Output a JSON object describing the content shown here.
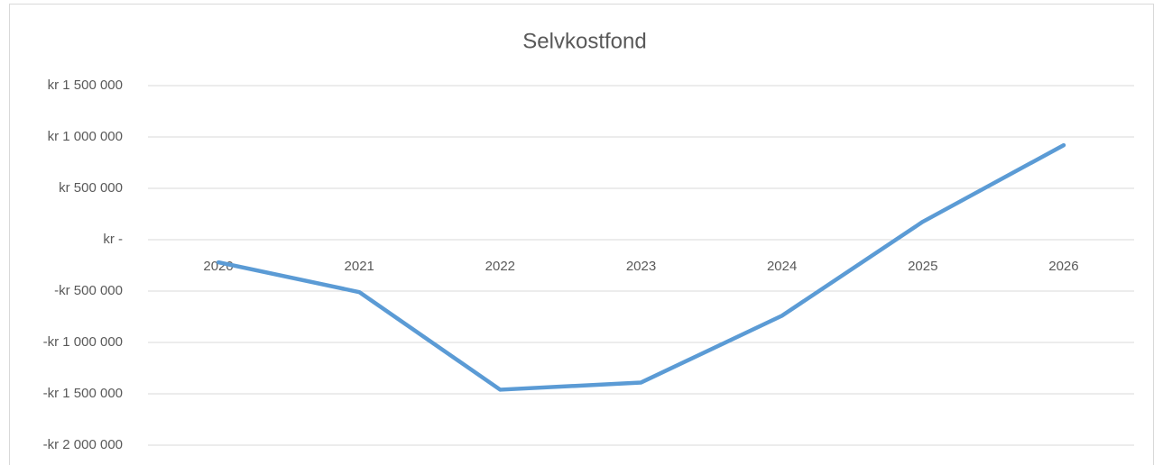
{
  "chart_data": {
    "type": "line",
    "title": "Selvkostfond",
    "categories": [
      "2020",
      "2021",
      "2022",
      "2023",
      "2024",
      "2025",
      "2026"
    ],
    "series": [
      {
        "name": "Selvkostfond",
        "color": "#5b9bd5",
        "values": [
          -220000,
          -510000,
          -1460000,
          -1390000,
          -740000,
          175000,
          920000
        ]
      }
    ],
    "ylim": [
      -2000000,
      1500000
    ],
    "yticks": [
      {
        "value": -2000000,
        "label": "-kr 2 000 000"
      },
      {
        "value": -1500000,
        "label": "-kr 1 500 000"
      },
      {
        "value": -1000000,
        "label": "-kr 1 000 000"
      },
      {
        "value": -500000,
        "label": "-kr 500 000"
      },
      {
        "value": 0,
        "label": "kr -"
      },
      {
        "value": 500000,
        "label": "kr 500 000"
      },
      {
        "value": 1000000,
        "label": "kr 1 000 000"
      },
      {
        "value": 1500000,
        "label": "kr 1 500 000"
      }
    ],
    "grid": true,
    "legend": false
  }
}
